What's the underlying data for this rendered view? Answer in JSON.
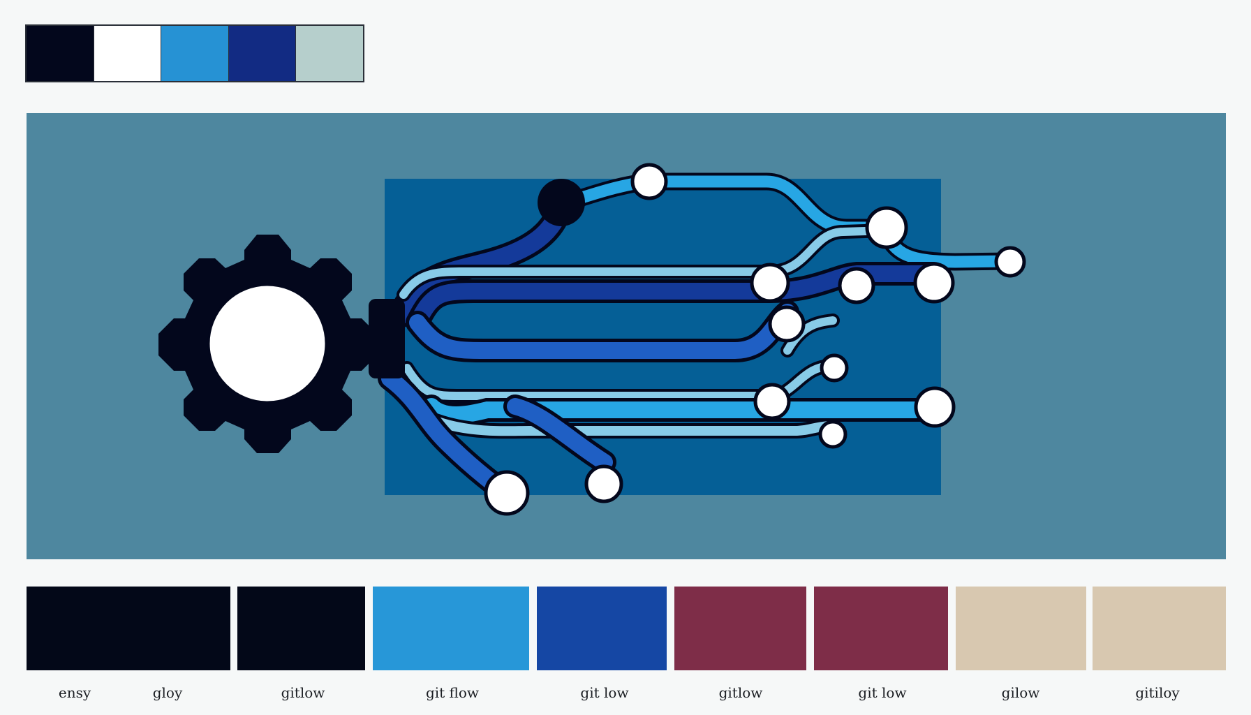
{
  "top_palette": {
    "swatches": [
      {
        "name": "navy-black",
        "color": "#03071c"
      },
      {
        "name": "white",
        "color": "#ffffff"
      },
      {
        "name": "sky-blue",
        "color": "#2692d4"
      },
      {
        "name": "deep-blue",
        "color": "#122b83"
      },
      {
        "name": "pale-grey-teal",
        "color": "#b6cfcc"
      }
    ]
  },
  "hero": {
    "background_color": "#4e879f",
    "panel_color": "#055f96",
    "gear_icon": "gear-icon",
    "gear_color": "#03071c",
    "hub_color": "#ffffff",
    "node_color": "#ffffff",
    "outline_color": "#03071c",
    "branch_colors": [
      "#27a6e4",
      "#143a9a",
      "#88cbe8",
      "#1f5fc4"
    ]
  },
  "bottom_palette": {
    "swatches": [
      {
        "name": "navy-black-wide",
        "color": "#030818"
      },
      {
        "name": "navy-black",
        "color": "#030818"
      },
      {
        "name": "sky-blue",
        "color": "#2797d8"
      },
      {
        "name": "royal-blue",
        "color": "#1547a4"
      },
      {
        "name": "burgundy-1",
        "color": "#7e2d48"
      },
      {
        "name": "burgundy-2",
        "color": "#7e2d48"
      },
      {
        "name": "sand-1",
        "color": "#d8c8b0"
      },
      {
        "name": "sand-2",
        "color": "#d8c8b0"
      }
    ],
    "labels": [
      "ensy",
      "gloy",
      "gitlow",
      "git flow",
      "git low",
      "gitlow",
      "git low",
      "gilow",
      "gitiloy"
    ]
  }
}
